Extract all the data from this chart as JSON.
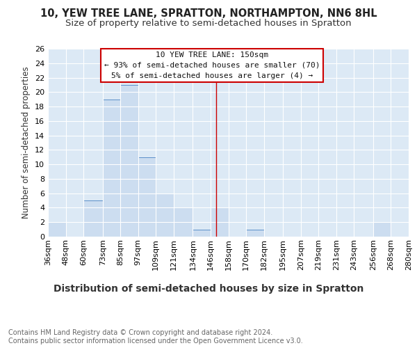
{
  "title1": "10, YEW TREE LANE, SPRATTON, NORTHAMPTON, NN6 8HL",
  "title2": "Size of property relative to semi-detached houses in Spratton",
  "xlabel": "Distribution of semi-detached houses by size in Spratton",
  "ylabel": "Number of semi-detached properties",
  "footnote": "Contains HM Land Registry data © Crown copyright and database right 2024.\nContains public sector information licensed under the Open Government Licence v3.0.",
  "bin_edges": [
    36,
    48,
    60,
    73,
    85,
    97,
    109,
    121,
    134,
    146,
    158,
    170,
    182,
    195,
    207,
    219,
    231,
    243,
    256,
    268,
    280
  ],
  "bin_labels": [
    "36sqm",
    "48sqm",
    "60sqm",
    "73sqm",
    "85sqm",
    "97sqm",
    "109sqm",
    "121sqm",
    "134sqm",
    "146sqm",
    "158sqm",
    "170sqm",
    "182sqm",
    "195sqm",
    "207sqm",
    "219sqm",
    "231sqm",
    "243sqm",
    "256sqm",
    "268sqm",
    "280sqm"
  ],
  "counts": [
    2,
    0,
    5,
    19,
    21,
    11,
    6,
    4,
    1,
    4,
    0,
    1,
    0,
    0,
    0,
    0,
    0,
    0,
    2,
    0
  ],
  "bar_color": "#ccddf0",
  "bar_edge_color": "#5b8fc9",
  "property_line_x": 150,
  "annotation_title": "10 YEW TREE LANE: 150sqm",
  "annotation_line1": "← 93% of semi-detached houses are smaller (70)",
  "annotation_line2": "5% of semi-detached houses are larger (4) →",
  "annotation_box_color": "#ffffff",
  "annotation_box_edge": "#cc0000",
  "ylim": [
    0,
    26
  ],
  "yticks": [
    0,
    2,
    4,
    6,
    8,
    10,
    12,
    14,
    16,
    18,
    20,
    22,
    24,
    26
  ],
  "plot_bg_color": "#dce9f5",
  "fig_bg_color": "#ffffff",
  "grid_color": "#ffffff",
  "title1_fontsize": 10.5,
  "title2_fontsize": 9.5,
  "xlabel_fontsize": 10,
  "ylabel_fontsize": 8.5,
  "tick_fontsize": 8,
  "annotation_fontsize": 8,
  "footnote_fontsize": 7
}
